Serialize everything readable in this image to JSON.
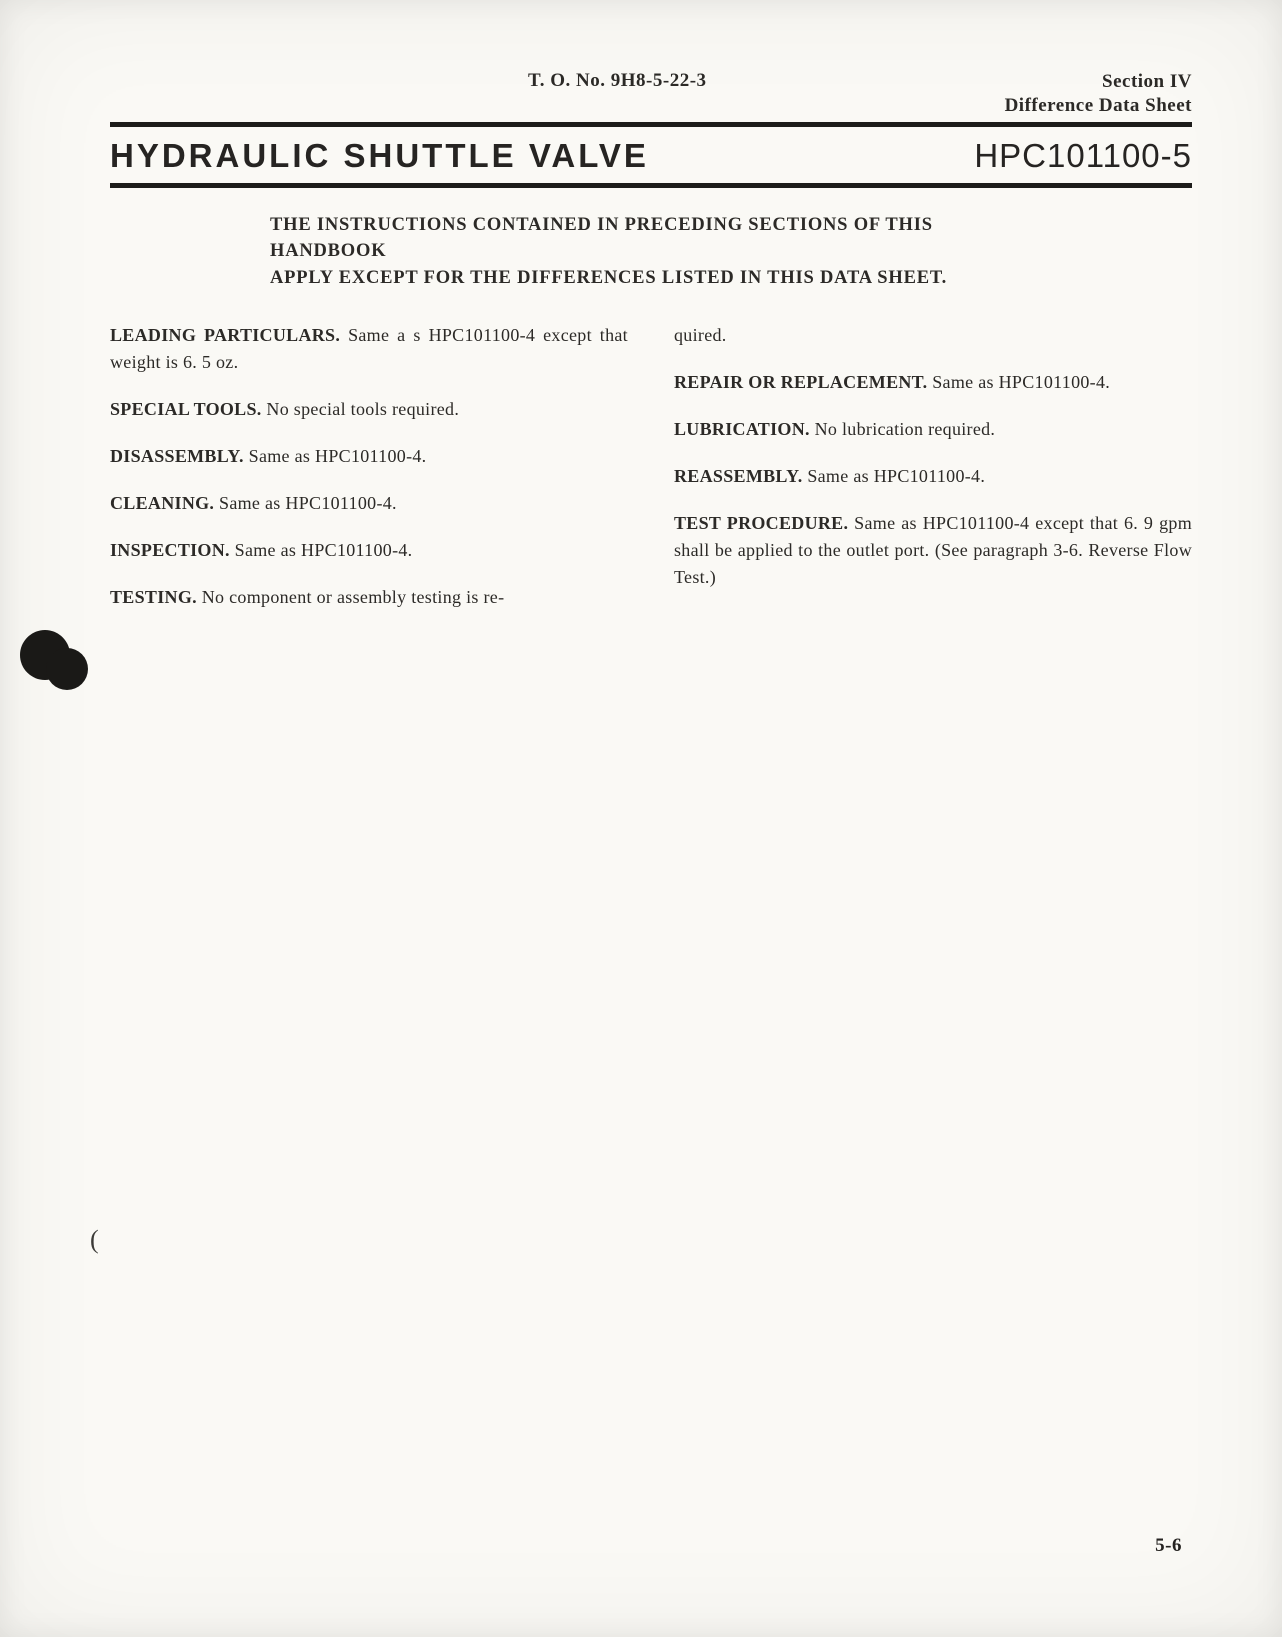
{
  "header": {
    "to_number": "T. O. No. 9H8-5-22-3",
    "section_line1": "Section IV",
    "section_line2": "Difference Data Sheet"
  },
  "title": {
    "main": "HYDRAULIC  SHUTTLE  VALVE",
    "part": "HPC101100-5"
  },
  "notice_line1": "THE INSTRUCTIONS CONTAINED IN PRECEDING SECTIONS OF THIS HANDBOOK",
  "notice_line2": "APPLY  EXCEPT  FOR  THE  DIFFERENCES  LISTED  IN  THIS  DATA  SHEET.",
  "left": {
    "p1_lead": "LEADING PARTICULARS. ",
    "p1_body": "Same a s HPC101100-4 except that weight is 6. 5 oz.",
    "p2_lead": "SPECIAL TOOLS. ",
    "p2_body": "No special tools required.",
    "p3_lead": "DISASSEMBLY. ",
    "p3_body": "Same as HPC101100-4.",
    "p4_lead": "CLEANING. ",
    "p4_body": "Same as HPC101100-4.",
    "p5_lead": "INSPECTION. ",
    "p5_body": "Same as HPC101100-4.",
    "p6_lead": "TESTING. ",
    "p6_body": "No component or assembly testing is re-"
  },
  "right": {
    "p1_body_cont": "quired.",
    "p2_lead": "REPAIR OR REPLACEMENT. ",
    "p2_body": "Same as HPC101100-4.",
    "p3_lead": "LUBRICATION. ",
    "p3_body": "No lubrication required.",
    "p4_lead": "REASSEMBLY. ",
    "p4_body": "Same as HPC101100-4.",
    "p5_lead": "TEST PROCEDURE. ",
    "p5_body": "Same as HPC101100-4 except that 6. 9 gpm shall be applied to the outlet port.  (See paragraph 3-6.  Reverse Flow Test.)"
  },
  "page_number": "5-6",
  "paren_mark": "(",
  "colors": {
    "paper": "#faf9f5",
    "ink": "#262422",
    "rule": "#1d1c1a"
  },
  "typography": {
    "body_fontsize_pt": 14,
    "title_fontsize_pt": 25,
    "header_fontsize_pt": 14
  }
}
